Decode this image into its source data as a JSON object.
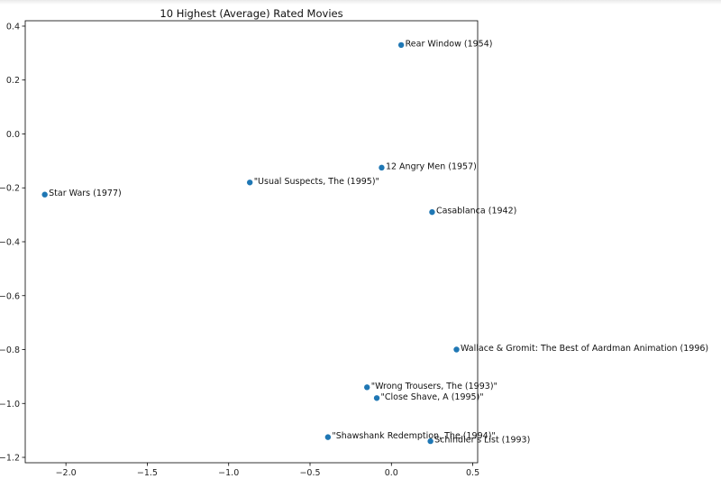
{
  "chart_data": {
    "type": "scatter",
    "title": "10 Highest (Average) Rated Movies",
    "xlabel": "",
    "ylabel": "",
    "xlim": [
      -2.25,
      0.53
    ],
    "ylim": [
      -1.22,
      0.42
    ],
    "xticks": [
      -2.0,
      -1.5,
      -1.0,
      -0.5,
      0.0,
      0.5
    ],
    "xtick_labels": [
      "−2.0",
      "−1.5",
      "−1.0",
      "−0.5",
      "0.0",
      "0.5"
    ],
    "yticks": [
      0.4,
      0.2,
      0.0,
      -0.2,
      -0.4,
      -0.6,
      -0.8,
      -1.0,
      -1.2
    ],
    "ytick_labels": [
      "0.4",
      "0.2",
      "0.0",
      "−0.2",
      "−0.4",
      "−0.6",
      "−0.8",
      "−1.0",
      "−1.2"
    ],
    "grid": false,
    "marker_color": "#1f77b4",
    "points": [
      {
        "label": "Rear Window (1954)",
        "x": 0.06,
        "y": 0.33
      },
      {
        "label": "12 Angry Men (1957)",
        "x": -0.06,
        "y": -0.125
      },
      {
        "label": "\"Usual Suspects, The (1995)\"",
        "x": -0.87,
        "y": -0.18
      },
      {
        "label": "Star Wars (1977)",
        "x": -2.13,
        "y": -0.225
      },
      {
        "label": "Casablanca (1942)",
        "x": 0.25,
        "y": -0.29
      },
      {
        "label": "Wallace & Gromit: The Best of Aardman Animation (1996)",
        "x": 0.4,
        "y": -0.8
      },
      {
        "label": "\"Wrong Trousers, The (1993)\"",
        "x": -0.15,
        "y": -0.94
      },
      {
        "label": "\"Close Shave, A (1995)\"",
        "x": -0.09,
        "y": -0.98
      },
      {
        "label": "\"Shawshank Redemption, The (1994)\"",
        "x": -0.39,
        "y": -1.125
      },
      {
        "label": "Schindler's List (1993)",
        "x": 0.24,
        "y": -1.14
      }
    ]
  }
}
